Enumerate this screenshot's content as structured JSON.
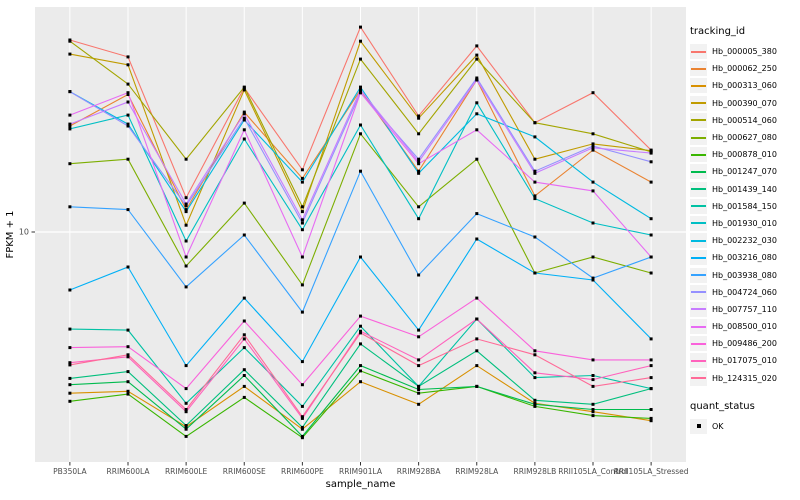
{
  "chart_data": {
    "type": "line",
    "title": "",
    "xlabel": "sample_name",
    "ylabel": "FPKM + 1",
    "y_scale": "log10",
    "y_tick_labels": [
      "10"
    ],
    "y_tick_values": [
      10
    ],
    "y_range_approx": [
      1.4,
      70
    ],
    "grid": true,
    "panel_bg": "#EBEBEB",
    "grid_color": "#FFFFFF",
    "point_color": "#000000",
    "point_shape": "square",
    "tick_label_color": "#4D4D4D",
    "axis_title_color": "#000000",
    "categories": [
      "PB350LA",
      "RRIM600LA",
      "RRIM600LE",
      "RRIM600SE",
      "RRIM600PE",
      "RRIM901LA",
      "RRIM928BA",
      "RRIM928LA",
      "RRIM928LB",
      "RRII105LA_Control",
      "RRII105LA_Stressed"
    ],
    "legend": {
      "title": "tracking_id",
      "position": "right"
    },
    "quant_legend": {
      "title": "quant_status",
      "items": [
        {
          "label": "OK",
          "marker": "black-square"
        }
      ]
    },
    "series": [
      {
        "name": "Hb_000005_380",
        "color": "#F8766D",
        "values": [
          51.4,
          44.5,
          13.4,
          34.2,
          17.0,
          57.4,
          26.9,
          48.9,
          25.4,
          32.8,
          20.1
        ]
      },
      {
        "name": "Hb_000062_250",
        "color": "#EA8331",
        "values": [
          24.7,
          32.3,
          12.1,
          27.8,
          15.8,
          33.6,
          16.8,
          36.6,
          13.6,
          20.1,
          15.3
        ]
      },
      {
        "name": "Hb_000313_060",
        "color": "#D89000",
        "values": [
          2.53,
          2.57,
          1.9,
          2.68,
          1.86,
          2.79,
          2.3,
          3.2,
          2.32,
          2.16,
          2.0
        ]
      },
      {
        "name": "Hb_000390_070",
        "color": "#C09B00",
        "values": [
          45.6,
          41.6,
          10.6,
          33.6,
          11.9,
          50.9,
          26.4,
          45.2,
          18.6,
          21.2,
          20.0
        ]
      },
      {
        "name": "Hb_000514_060",
        "color": "#A3A500",
        "values": [
          50.9,
          35.3,
          18.6,
          34.4,
          12.4,
          43.7,
          23.1,
          43.7,
          25.4,
          23.1,
          19.8
        ]
      },
      {
        "name": "Hb_000627_080",
        "color": "#7CAE00",
        "values": [
          17.9,
          18.6,
          7.48,
          12.8,
          6.37,
          23.1,
          12.4,
          18.6,
          7.05,
          8.08,
          7.05
        ]
      },
      {
        "name": "Hb_000878_010",
        "color": "#39B600",
        "values": [
          2.36,
          2.51,
          1.75,
          2.44,
          1.73,
          3.06,
          2.53,
          2.68,
          2.26,
          2.09,
          2.04
        ]
      },
      {
        "name": "Hb_001247_070",
        "color": "#00BB4E",
        "values": [
          2.72,
          2.79,
          1.86,
          2.94,
          1.75,
          3.2,
          2.61,
          2.68,
          2.3,
          2.2,
          2.2
        ]
      },
      {
        "name": "Hb_001439_140",
        "color": "#00BF7D",
        "values": [
          2.87,
          3.04,
          1.92,
          3.09,
          1.89,
          3.85,
          2.68,
          3.63,
          2.38,
          2.3,
          2.63
        ]
      },
      {
        "name": "Hb_001584_150",
        "color": "#00C1A3",
        "values": [
          4.37,
          4.33,
          2.32,
          3.73,
          2.26,
          4.48,
          2.68,
          4.76,
          2.89,
          2.94,
          2.63
        ]
      },
      {
        "name": "Hb_001930_010",
        "color": "#00BFC4",
        "values": [
          24.1,
          27.1,
          9.26,
          22.1,
          10.2,
          24.9,
          11.2,
          30.1,
          13.3,
          10.8,
          9.75
        ]
      },
      {
        "name": "Hb_002232_030",
        "color": "#00BAE0",
        "values": [
          33.1,
          25.1,
          11.9,
          26.0,
          15.3,
          34.4,
          16.5,
          27.4,
          22.5,
          15.3,
          11.2
        ]
      },
      {
        "name": "Hb_003216_080",
        "color": "#00B0F6",
        "values": [
          6.1,
          7.42,
          3.2,
          5.69,
          3.31,
          8.08,
          4.33,
          9.42,
          7.05,
          6.64,
          4.02
        ]
      },
      {
        "name": "Hb_003938_080",
        "color": "#35A2FF",
        "values": [
          12.4,
          12.1,
          6.26,
          9.75,
          5.05,
          16.8,
          6.93,
          11.7,
          9.58,
          6.75,
          8.08
        ]
      },
      {
        "name": "Hb_004724_060",
        "color": "#9590FF",
        "values": [
          33.1,
          24.7,
          12.5,
          26.4,
          10.8,
          32.8,
          18.6,
          37.2,
          16.8,
          20.8,
          18.2
        ]
      },
      {
        "name": "Hb_007757_110",
        "color": "#C77CFF",
        "values": [
          25.1,
          30.3,
          12.7,
          27.4,
          11.1,
          33.6,
          18.2,
          36.6,
          16.5,
          20.5,
          19.6
        ]
      },
      {
        "name": "Hb_008500_010",
        "color": "#E76BF3",
        "values": [
          27.1,
          32.8,
          8.08,
          23.9,
          8.08,
          32.8,
          17.9,
          23.9,
          15.3,
          14.2,
          8.08
        ]
      },
      {
        "name": "Hb_009486_200",
        "color": "#FA62DB",
        "values": [
          3.73,
          3.76,
          2.63,
          4.68,
          2.72,
          4.88,
          4.09,
          5.69,
          3.63,
          3.36,
          3.36
        ]
      },
      {
        "name": "Hb_017075_010",
        "color": "#FF62BC",
        "values": [
          3.28,
          3.45,
          2.16,
          4.02,
          2.04,
          4.29,
          3.36,
          4.76,
          3.01,
          2.84,
          3.2
        ]
      },
      {
        "name": "Hb_124315_020",
        "color": "#FF6A98",
        "values": [
          3.22,
          3.51,
          2.2,
          4.16,
          2.07,
          4.23,
          3.2,
          4.02,
          3.51,
          2.68,
          2.89
        ]
      }
    ]
  }
}
